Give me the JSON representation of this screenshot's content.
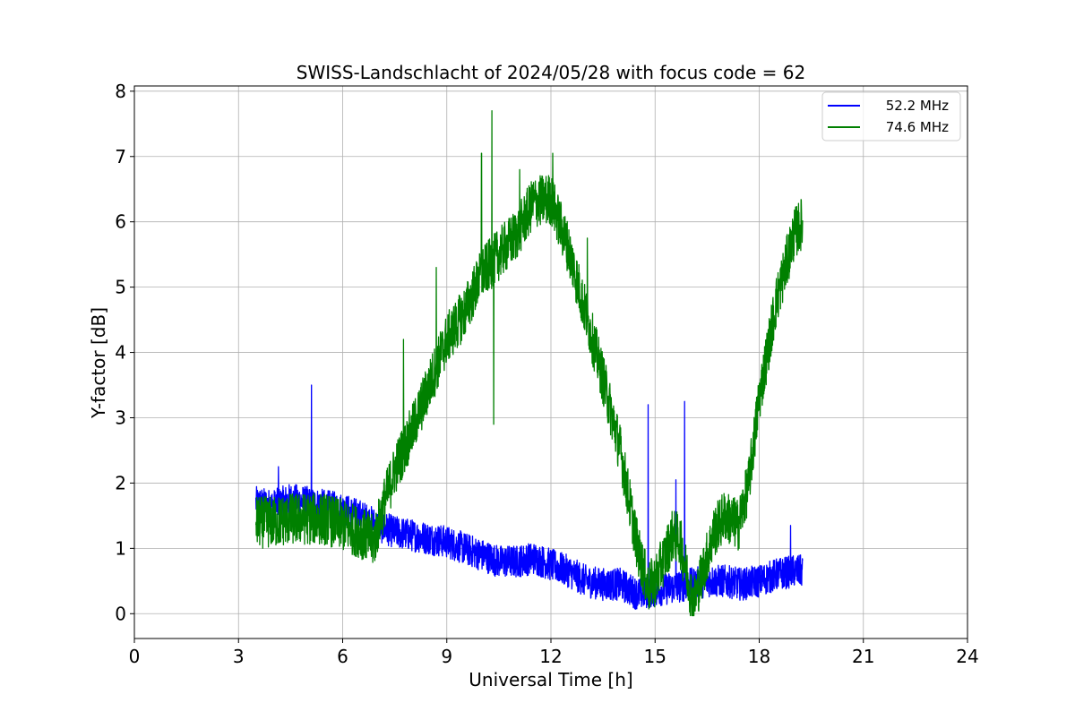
{
  "chart_data": {
    "type": "line",
    "title": "SWISS-Landschlacht of 2024/05/28 with focus code = 62",
    "xlabel": "Universal Time [h]",
    "ylabel": "Y-factor [dB]",
    "xlim": [
      0,
      24
    ],
    "ylim": [
      -0.38,
      8.08
    ],
    "xticks": [
      0,
      3,
      6,
      9,
      12,
      15,
      18,
      21,
      24
    ],
    "yticks": [
      0,
      1,
      2,
      3,
      4,
      5,
      6,
      7,
      8
    ],
    "grid": true,
    "legend_position": "top-right",
    "series": [
      {
        "name": "52.2 MHz",
        "color": "#0000ff",
        "noise_amplitude": 0.25,
        "points": [
          [
            3.5,
            1.7
          ],
          [
            4.0,
            1.65
          ],
          [
            4.5,
            1.75
          ],
          [
            5.0,
            1.7
          ],
          [
            5.5,
            1.65
          ],
          [
            6.0,
            1.6
          ],
          [
            6.5,
            1.5
          ],
          [
            7.0,
            1.35
          ],
          [
            7.5,
            1.25
          ],
          [
            8.0,
            1.2
          ],
          [
            8.5,
            1.15
          ],
          [
            9.0,
            1.1
          ],
          [
            9.5,
            1.0
          ],
          [
            10.0,
            0.9
          ],
          [
            10.5,
            0.8
          ],
          [
            11.0,
            0.8
          ],
          [
            11.5,
            0.85
          ],
          [
            12.0,
            0.75
          ],
          [
            12.5,
            0.65
          ],
          [
            13.0,
            0.5
          ],
          [
            13.5,
            0.45
          ],
          [
            14.0,
            0.45
          ],
          [
            14.5,
            0.3
          ],
          [
            15.0,
            0.35
          ],
          [
            15.5,
            0.4
          ],
          [
            16.0,
            0.45
          ],
          [
            16.5,
            0.5
          ],
          [
            17.0,
            0.5
          ],
          [
            17.5,
            0.45
          ],
          [
            18.0,
            0.5
          ],
          [
            18.5,
            0.6
          ],
          [
            19.0,
            0.65
          ],
          [
            19.25,
            0.65
          ]
        ],
        "spikes": [
          [
            5.1,
            3.5
          ],
          [
            14.8,
            3.2
          ],
          [
            15.85,
            3.25
          ],
          [
            4.15,
            2.25
          ],
          [
            15.6,
            2.05
          ],
          [
            18.9,
            1.35
          ]
        ]
      },
      {
        "name": "74.6 MHz",
        "color": "#008000",
        "noise_amplitude": 0.4,
        "points": [
          [
            3.5,
            1.4
          ],
          [
            4.0,
            1.4
          ],
          [
            4.5,
            1.45
          ],
          [
            5.0,
            1.45
          ],
          [
            5.5,
            1.45
          ],
          [
            6.0,
            1.35
          ],
          [
            6.5,
            1.25
          ],
          [
            6.9,
            1.1
          ],
          [
            7.2,
            1.7
          ],
          [
            7.5,
            2.2
          ],
          [
            8.0,
            2.8
          ],
          [
            8.5,
            3.5
          ],
          [
            9.0,
            4.2
          ],
          [
            9.5,
            4.6
          ],
          [
            10.0,
            5.2
          ],
          [
            10.5,
            5.5
          ],
          [
            11.0,
            5.8
          ],
          [
            11.5,
            6.3
          ],
          [
            12.0,
            6.35
          ],
          [
            12.5,
            5.6
          ],
          [
            13.0,
            4.6
          ],
          [
            13.5,
            3.6
          ],
          [
            14.0,
            2.5
          ],
          [
            14.5,
            1.0
          ],
          [
            14.8,
            0.4
          ],
          [
            15.0,
            0.5
          ],
          [
            15.3,
            0.9
          ],
          [
            15.5,
            1.2
          ],
          [
            15.7,
            1.15
          ],
          [
            16.0,
            0.4
          ],
          [
            16.1,
            0.15
          ],
          [
            16.4,
            0.7
          ],
          [
            16.7,
            1.25
          ],
          [
            17.0,
            1.5
          ],
          [
            17.4,
            1.35
          ],
          [
            17.7,
            2.0
          ],
          [
            18.0,
            3.3
          ],
          [
            18.5,
            4.8
          ],
          [
            19.0,
            5.8
          ],
          [
            19.25,
            6.0
          ]
        ],
        "spikes": [
          [
            10.3,
            7.7
          ],
          [
            10.0,
            7.05
          ],
          [
            10.35,
            2.9
          ],
          [
            12.05,
            7.05
          ],
          [
            11.1,
            6.8
          ],
          [
            13.05,
            5.75
          ],
          [
            8.7,
            5.3
          ],
          [
            7.75,
            4.2
          ]
        ]
      }
    ]
  }
}
